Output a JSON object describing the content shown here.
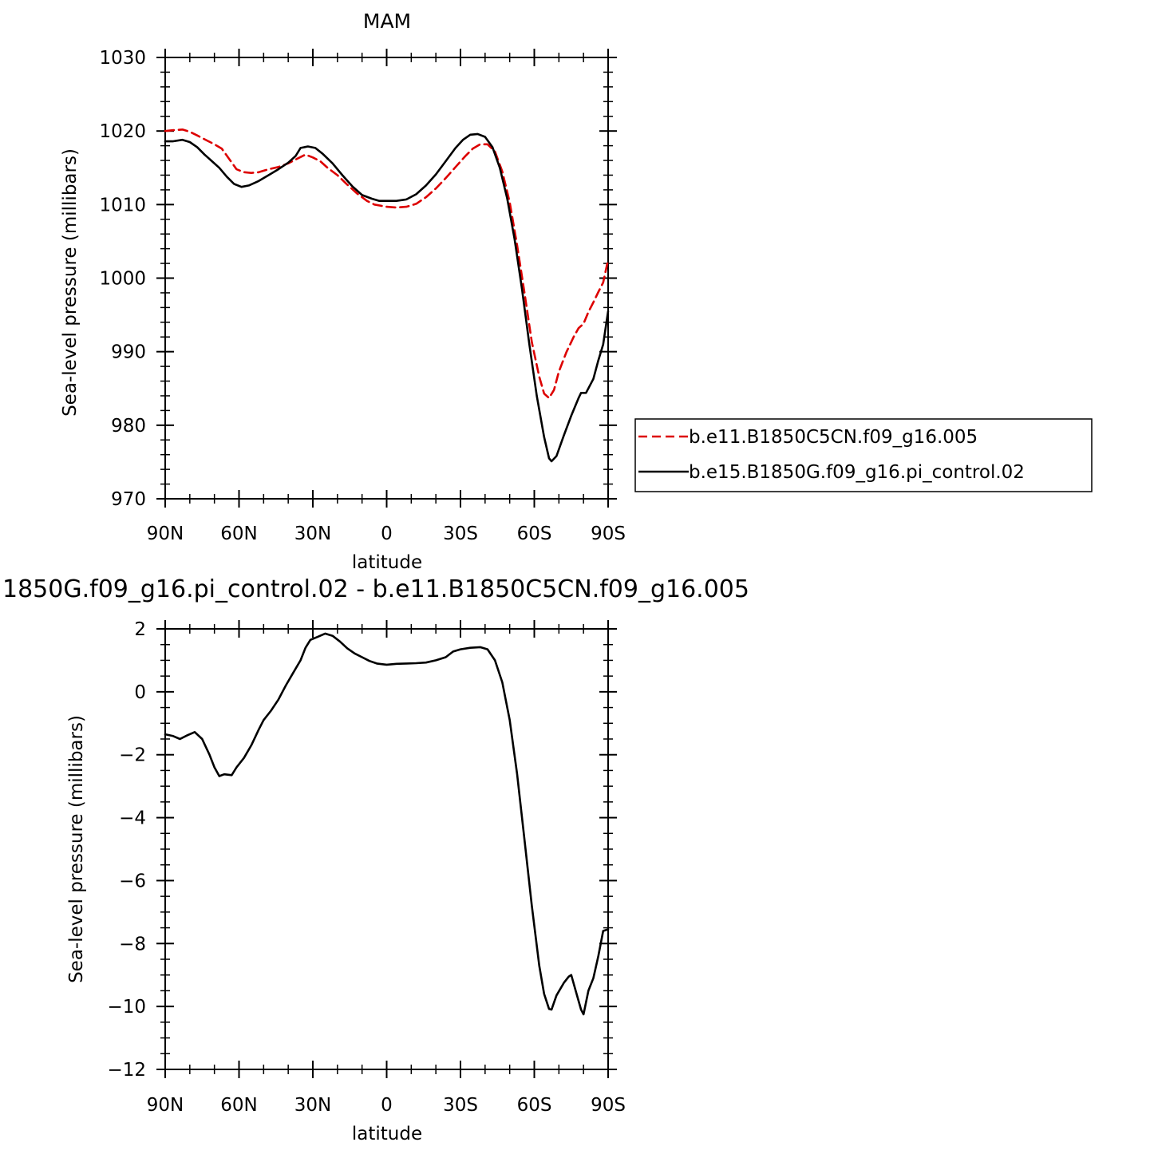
{
  "colors": {
    "background": "#ffffff",
    "axis": "#000000",
    "series_red": "#dd0000",
    "series_black": "#000000"
  },
  "chart_data": [
    {
      "type": "line",
      "title": "MAM",
      "xlabel": "latitude",
      "ylabel": "Sea-level pressure (millibars)",
      "xlim": [
        90,
        -90
      ],
      "ylim": [
        970,
        1030
      ],
      "xticks": [
        90,
        60,
        30,
        0,
        -30,
        -60,
        -90
      ],
      "xtick_labels": [
        "90N",
        "60N",
        "30N",
        "0",
        "30S",
        "60S",
        "90S"
      ],
      "yticks": [
        970,
        980,
        990,
        1000,
        1010,
        1020,
        1030
      ],
      "ytick_labels": [
        "970",
        "980",
        "990",
        "1000",
        "1010",
        "1020",
        "1030"
      ],
      "grid": false,
      "legend_position": "right",
      "series": [
        {
          "name": "b.e11.B1850C5CN.f09_g16.005",
          "color": "#dd0000",
          "dash": "dashed",
          "points": [
            [
              90,
              1020.0
            ],
            [
              87,
              1020.1
            ],
            [
              83,
              1020.2
            ],
            [
              80,
              1019.9
            ],
            [
              77,
              1019.4
            ],
            [
              73,
              1018.7
            ],
            [
              70,
              1018.2
            ],
            [
              67,
              1017.6
            ],
            [
              64,
              1016.2
            ],
            [
              61,
              1014.8
            ],
            [
              58,
              1014.4
            ],
            [
              55,
              1014.3
            ],
            [
              52,
              1014.4
            ],
            [
              48,
              1014.8
            ],
            [
              44,
              1015.1
            ],
            [
              40,
              1015.6
            ],
            [
              36,
              1016.3
            ],
            [
              33,
              1016.8
            ],
            [
              30,
              1016.4
            ],
            [
              27,
              1015.9
            ],
            [
              24,
              1015.0
            ],
            [
              20,
              1014.0
            ],
            [
              16,
              1012.7
            ],
            [
              12,
              1011.5
            ],
            [
              8,
              1010.5
            ],
            [
              5,
              1010.0
            ],
            [
              0,
              1009.7
            ],
            [
              -4,
              1009.6
            ],
            [
              -8,
              1009.7
            ],
            [
              -12,
              1010.1
            ],
            [
              -16,
              1011.0
            ],
            [
              -20,
              1012.2
            ],
            [
              -24,
              1013.6
            ],
            [
              -28,
              1015.1
            ],
            [
              -32,
              1016.6
            ],
            [
              -35,
              1017.6
            ],
            [
              -38,
              1018.2
            ],
            [
              -41,
              1018.2
            ],
            [
              -44,
              1017.2
            ],
            [
              -47,
              1014.5
            ],
            [
              -50,
              1010.3
            ],
            [
              -53,
              1004.5
            ],
            [
              -56,
              998.0
            ],
            [
              -59,
              991.3
            ],
            [
              -62,
              986.6
            ],
            [
              -64,
              984.3
            ],
            [
              -66,
              983.7
            ],
            [
              -68,
              984.8
            ],
            [
              -70,
              987.3
            ],
            [
              -73,
              989.9
            ],
            [
              -76,
              992.0
            ],
            [
              -78,
              993.2
            ],
            [
              -80,
              993.8
            ],
            [
              -82,
              995.4
            ],
            [
              -84,
              996.7
            ],
            [
              -86,
              998.1
            ],
            [
              -88,
              999.4
            ],
            [
              -90,
              1002.5
            ]
          ]
        },
        {
          "name": "b.e15.B1850G.f09_g16.pi_control.02",
          "color": "#000000",
          "dash": "solid",
          "points": [
            [
              90,
              1018.6
            ],
            [
              87,
              1018.6
            ],
            [
              83,
              1018.8
            ],
            [
              80,
              1018.5
            ],
            [
              77,
              1017.8
            ],
            [
              74,
              1016.8
            ],
            [
              71,
              1015.9
            ],
            [
              68,
              1015.0
            ],
            [
              65,
              1013.8
            ],
            [
              62,
              1012.8
            ],
            [
              59,
              1012.4
            ],
            [
              56,
              1012.6
            ],
            [
              52,
              1013.2
            ],
            [
              48,
              1014.0
            ],
            [
              44,
              1014.8
            ],
            [
              40,
              1015.7
            ],
            [
              37,
              1016.6
            ],
            [
              35,
              1017.7
            ],
            [
              32,
              1017.9
            ],
            [
              29,
              1017.7
            ],
            [
              26,
              1016.9
            ],
            [
              22,
              1015.6
            ],
            [
              18,
              1014.0
            ],
            [
              14,
              1012.5
            ],
            [
              10,
              1011.3
            ],
            [
              6,
              1010.8
            ],
            [
              3,
              1010.5
            ],
            [
              0,
              1010.5
            ],
            [
              -4,
              1010.5
            ],
            [
              -8,
              1010.7
            ],
            [
              -12,
              1011.4
            ],
            [
              -16,
              1012.6
            ],
            [
              -20,
              1014.1
            ],
            [
              -24,
              1015.9
            ],
            [
              -28,
              1017.7
            ],
            [
              -31,
              1018.8
            ],
            [
              -34,
              1019.5
            ],
            [
              -37,
              1019.6
            ],
            [
              -40,
              1019.2
            ],
            [
              -43,
              1017.8
            ],
            [
              -46,
              1015.0
            ],
            [
              -49,
              1010.8
            ],
            [
              -52,
              1005.3
            ],
            [
              -55,
              998.5
            ],
            [
              -58,
              991.0
            ],
            [
              -61,
              984.0
            ],
            [
              -64,
              978.4
            ],
            [
              -66,
              975.5
            ],
            [
              -67,
              975.1
            ],
            [
              -69,
              975.8
            ],
            [
              -72,
              978.6
            ],
            [
              -75,
              981.3
            ],
            [
              -78,
              983.7
            ],
            [
              -79,
              984.4
            ],
            [
              -81,
              984.4
            ],
            [
              -84,
              986.3
            ],
            [
              -86,
              988.8
            ],
            [
              -88,
              991.0
            ],
            [
              -90,
              995.5
            ]
          ]
        }
      ]
    },
    {
      "type": "line",
      "title": "1850G.f09_g16.pi_control.02 - b.e11.B1850C5CN.f09_g16.005",
      "xlabel": "latitude",
      "ylabel": "Sea-level pressure (millibars)",
      "xlim": [
        90,
        -90
      ],
      "ylim": [
        -12,
        2
      ],
      "xticks": [
        90,
        60,
        30,
        0,
        -30,
        -60,
        -90
      ],
      "xtick_labels": [
        "90N",
        "60N",
        "30N",
        "0",
        "30S",
        "60S",
        "90S"
      ],
      "yticks": [
        -12,
        -10,
        -8,
        -6,
        -4,
        -2,
        0,
        2
      ],
      "ytick_labels": [
        "−12",
        "−10",
        "−8",
        "−6",
        "−4",
        "−2",
        "0",
        "2"
      ],
      "grid": false,
      "series": [
        {
          "color": "#000000",
          "dash": "solid",
          "points": [
            [
              90,
              -1.35
            ],
            [
              87,
              -1.4
            ],
            [
              84,
              -1.5
            ],
            [
              81,
              -1.38
            ],
            [
              78,
              -1.28
            ],
            [
              75,
              -1.5
            ],
            [
              72,
              -2.0
            ],
            [
              70,
              -2.4
            ],
            [
              68,
              -2.68
            ],
            [
              66,
              -2.62
            ],
            [
              63,
              -2.65
            ],
            [
              61,
              -2.4
            ],
            [
              58,
              -2.1
            ],
            [
              55,
              -1.7
            ],
            [
              52,
              -1.2
            ],
            [
              50,
              -0.9
            ],
            [
              47,
              -0.6
            ],
            [
              44,
              -0.25
            ],
            [
              41,
              0.2
            ],
            [
              38,
              0.6
            ],
            [
              35,
              1.0
            ],
            [
              33,
              1.4
            ],
            [
              31,
              1.65
            ],
            [
              28,
              1.75
            ],
            [
              25,
              1.85
            ],
            [
              22,
              1.78
            ],
            [
              19,
              1.6
            ],
            [
              16,
              1.38
            ],
            [
              13,
              1.22
            ],
            [
              10,
              1.1
            ],
            [
              7,
              0.98
            ],
            [
              4,
              0.9
            ],
            [
              0,
              0.86
            ],
            [
              -4,
              0.89
            ],
            [
              -8,
              0.9
            ],
            [
              -12,
              0.91
            ],
            [
              -16,
              0.93
            ],
            [
              -20,
              1.0
            ],
            [
              -24,
              1.1
            ],
            [
              -27,
              1.28
            ],
            [
              -30,
              1.35
            ],
            [
              -34,
              1.4
            ],
            [
              -38,
              1.42
            ],
            [
              -41,
              1.35
            ],
            [
              -44,
              1.0
            ],
            [
              -47,
              0.3
            ],
            [
              -50,
              -0.9
            ],
            [
              -53,
              -2.6
            ],
            [
              -56,
              -4.7
            ],
            [
              -59,
              -6.8
            ],
            [
              -62,
              -8.7
            ],
            [
              -64,
              -9.6
            ],
            [
              -66,
              -10.08
            ],
            [
              -67,
              -10.1
            ],
            [
              -69,
              -9.65
            ],
            [
              -72,
              -9.25
            ],
            [
              -74,
              -9.05
            ],
            [
              -75,
              -9.0
            ],
            [
              -77,
              -9.55
            ],
            [
              -79,
              -10.1
            ],
            [
              -80,
              -10.25
            ],
            [
              -82,
              -9.5
            ],
            [
              -84,
              -9.1
            ],
            [
              -86,
              -8.4
            ],
            [
              -88,
              -7.6
            ],
            [
              -90,
              -7.55
            ]
          ]
        }
      ]
    }
  ]
}
